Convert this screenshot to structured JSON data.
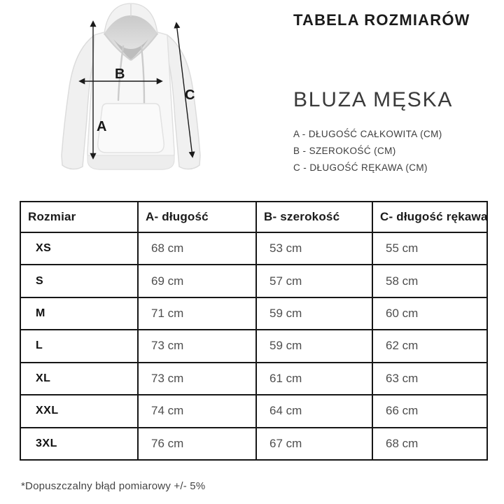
{
  "header": {
    "title": "TABELA ROZMIARÓW",
    "product": "BLUZA MĘSKA"
  },
  "legend": {
    "items": [
      "A - DŁUGOŚĆ CAŁKOWITA (CM)",
      "B - SZEROKOŚĆ (CM)",
      "C - DŁUGOŚĆ RĘKAWA (CM)"
    ]
  },
  "diagram": {
    "labels": {
      "a": "A",
      "b": "B",
      "c": "C"
    }
  },
  "table": {
    "headers": [
      "Rozmiar",
      "A- długość",
      "B- szerokość",
      "C- długość rękawa"
    ],
    "rows": [
      [
        "XS",
        "68 cm",
        "53 cm",
        "55 cm"
      ],
      [
        "S",
        "69 cm",
        "57 cm",
        "58 cm"
      ],
      [
        "M",
        "71 cm",
        "59 cm",
        "60 cm"
      ],
      [
        "L",
        "73 cm",
        "59 cm",
        "62 cm"
      ],
      [
        "XL",
        "73 cm",
        "61 cm",
        "63 cm"
      ],
      [
        "XXL",
        "74 cm",
        "64 cm",
        "66 cm"
      ],
      [
        "3XL",
        "76 cm",
        "67 cm",
        "68 cm"
      ]
    ]
  },
  "footnote": "*Dopuszczalny błąd pomiarowy +/- 5%",
  "colors": {
    "text_primary": "#1b1b1b",
    "text_secondary": "#4e4e4e",
    "table_border": "#161616",
    "hoodie_fill": "#f5f5f5",
    "hoodie_shadow": "#d7d7d7",
    "arrow": "#1a1a1a"
  }
}
